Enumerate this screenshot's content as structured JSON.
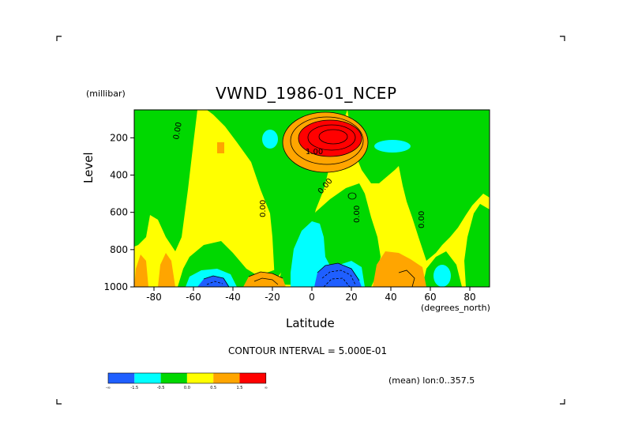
{
  "title": "VWND_1986-01_NCEP",
  "y_units": "(millibar)",
  "y_axis_label": "Level",
  "x_axis_label": "Latitude",
  "x_units": "(degrees_north)",
  "contour_interval": "CONTOUR INTERVAL = 5.000E-01",
  "mean_note": "(mean) lon:0..357.5",
  "colors": {
    "lt_neg_1_5": "#1f5fff",
    "neg_1_5_to_neg_0_5": "#00ffff",
    "neg_0_5_to_0": "#00d800",
    "zero_to_0_5": "#ffff00",
    "0_5_to_1_5": "#ffa500",
    "gt_1_5": "#ff0000"
  },
  "legend_labels": [
    "-∞",
    "-1.5",
    "-0.5",
    "0.0",
    "0.5",
    "1.5",
    "∞"
  ],
  "chart_data": {
    "type": "heatmap",
    "title": "VWND_1986-01_NCEP",
    "xlabel": "Latitude",
    "ylabel": "Level",
    "xlim": [
      -90,
      90
    ],
    "ylim": [
      1000,
      50
    ],
    "y_inverted": true,
    "x_ticks": [
      -80,
      -60,
      -40,
      -20,
      0,
      20,
      40,
      60,
      80
    ],
    "y_ticks": [
      200,
      400,
      600,
      800,
      1000
    ],
    "contour_labels": [
      "0.00",
      "1.00"
    ],
    "regions": [
      {
        "level": "0.5 to 1.5",
        "lat": [
          -12,
          28
        ],
        "p": [
          80,
          330
        ]
      },
      {
        "level": "> 1.5",
        "lat": [
          -8,
          20
        ],
        "p": [
          120,
          250
        ]
      },
      {
        "level": "-0.5 to 0",
        "lat": [
          -70,
          -57
        ],
        "p": [
          50,
          1000
        ]
      },
      {
        "level": "-0.5 to 0",
        "lat": [
          -15,
          15
        ],
        "p": [
          50,
          1000
        ]
      },
      {
        "level": "-1.5 to -0.5",
        "lat": [
          -3,
          10
        ],
        "p": [
          520,
          880
        ]
      },
      {
        "level": "< -1.5",
        "lat": [
          0,
          20
        ],
        "p": [
          840,
          1000
        ]
      },
      {
        "level": "< -1.5",
        "lat": [
          -58,
          -40
        ],
        "p": [
          920,
          1000
        ]
      },
      {
        "level": "-1.5 to -0.5",
        "lat": [
          -70,
          -32
        ],
        "p": [
          860,
          1000
        ]
      },
      {
        "level": "0.5 to 1.5",
        "lat": [
          -88,
          -82
        ],
        "p": [
          800,
          1000
        ]
      },
      {
        "level": "0.5 to 1.5",
        "lat": [
          -76,
          -70
        ],
        "p": [
          810,
          1000
        ]
      },
      {
        "level": "0.5 to 1.5",
        "lat": [
          -32,
          -12
        ],
        "p": [
          860,
          1000
        ]
      },
      {
        "level": "0.5 to 1.5",
        "lat": [
          32,
          58
        ],
        "p": [
          800,
          1000
        ]
      },
      {
        "level": "-1.5 to -0.5",
        "lat": [
          -24,
          -18
        ],
        "p": [
          120,
          200
        ]
      },
      {
        "level": "-1.5 to -0.5",
        "lat": [
          35,
          47
        ],
        "p": [
          160,
          220
        ]
      },
      {
        "level": "-1.5 to -0.5",
        "lat": [
          58,
          64
        ],
        "p": [
          880,
          1000
        ]
      },
      {
        "level": "0.5 to 1.5",
        "lat": [
          -47,
          -43
        ],
        "p": [
          175,
          230
        ]
      }
    ]
  }
}
